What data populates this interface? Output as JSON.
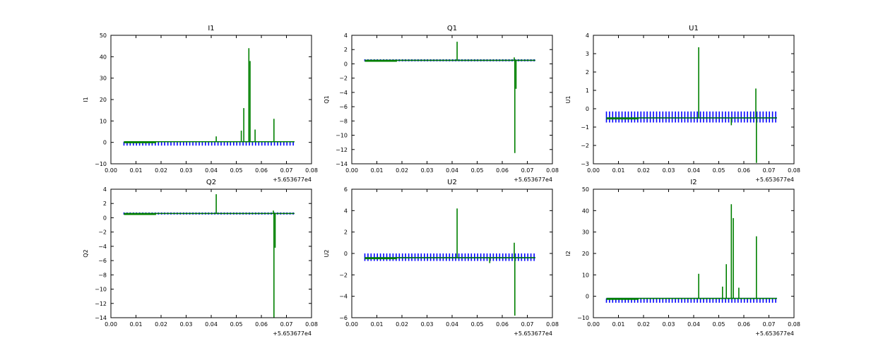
{
  "x_offset_label": "+5.653677e4",
  "colors": {
    "blue": "#0000ff",
    "green": "#008000",
    "frame": "#000000"
  },
  "chart_data": [
    {
      "type": "line",
      "title": "I1",
      "ylabel": "I1",
      "xlim": [
        0.0,
        0.08
      ],
      "ylim": [
        -10,
        50
      ],
      "xticks": [
        "0.00",
        "0.01",
        "0.02",
        "0.03",
        "0.04",
        "0.05",
        "0.06",
        "0.07",
        "0.08"
      ],
      "yticks": [
        "−10",
        "0",
        "10",
        "20",
        "30",
        "40",
        "50"
      ],
      "baseline": 0.3,
      "blue_tick_low": -1.5,
      "blue_tick_high": 0.3,
      "spikes": [
        [
          0.042,
          2.8
        ],
        [
          0.052,
          5.5
        ],
        [
          0.053,
          16
        ],
        [
          0.055,
          44
        ],
        [
          0.0555,
          38
        ],
        [
          0.0575,
          6
        ],
        [
          0.065,
          11
        ]
      ],
      "neg_spikes": []
    },
    {
      "type": "line",
      "title": "Q1",
      "ylabel": "Q1",
      "xlim": [
        0.0,
        0.08
      ],
      "ylim": [
        -14,
        4
      ],
      "xticks": [
        "0.00",
        "0.01",
        "0.02",
        "0.03",
        "0.04",
        "0.05",
        "0.06",
        "0.07",
        "0.08"
      ],
      "yticks": [
        "−14",
        "−12",
        "−10",
        "−8",
        "−6",
        "−4",
        "−2",
        "0",
        "2",
        "4"
      ],
      "baseline": 0.5,
      "blue_tick_low": 0.35,
      "blue_tick_high": 0.65,
      "spikes": [
        [
          0.042,
          3.1
        ],
        [
          0.0648,
          0.9
        ]
      ],
      "neg_spikes": [
        [
          0.065,
          -12.5
        ],
        [
          0.0655,
          -3.5
        ]
      ]
    },
    {
      "type": "line",
      "title": "U1",
      "ylabel": "U1",
      "xlim": [
        0.0,
        0.08
      ],
      "ylim": [
        -3,
        4
      ],
      "xticks": [
        "0.00",
        "0.01",
        "0.02",
        "0.03",
        "0.04",
        "0.05",
        "0.06",
        "0.07",
        "0.08"
      ],
      "yticks": [
        "−3",
        "−2",
        "−1",
        "0",
        "1",
        "2",
        "3",
        "4"
      ],
      "baseline": -0.5,
      "blue_tick_low": -0.75,
      "blue_tick_high": -0.15,
      "spikes": [
        [
          0.042,
          3.35
        ],
        [
          0.0648,
          1.1
        ]
      ],
      "neg_spikes": [
        [
          0.065,
          -2.95
        ],
        [
          0.055,
          -0.9
        ]
      ]
    },
    {
      "type": "line",
      "title": "Q2",
      "ylabel": "Q2",
      "xlim": [
        0.0,
        0.08
      ],
      "ylim": [
        -14,
        4
      ],
      "xticks": [
        "0.00",
        "0.01",
        "0.02",
        "0.03",
        "0.04",
        "0.05",
        "0.06",
        "0.07",
        "0.08"
      ],
      "yticks": [
        "−14",
        "−12",
        "−10",
        "−8",
        "−6",
        "−4",
        "−2",
        "0",
        "2",
        "4"
      ],
      "baseline": 0.6,
      "blue_tick_low": 0.45,
      "blue_tick_high": 0.75,
      "spikes": [
        [
          0.042,
          3.3
        ],
        [
          0.0648,
          1.0
        ]
      ],
      "neg_spikes": [
        [
          0.065,
          -14
        ],
        [
          0.0655,
          -4.2
        ]
      ]
    },
    {
      "type": "line",
      "title": "U2",
      "ylabel": "U2",
      "xlim": [
        0.0,
        0.08
      ],
      "ylim": [
        -6,
        6
      ],
      "xticks": [
        "0.00",
        "0.01",
        "0.02",
        "0.03",
        "0.04",
        "0.05",
        "0.06",
        "0.07",
        "0.08"
      ],
      "yticks": [
        "−6",
        "−4",
        "−2",
        "0",
        "2",
        "4",
        "6"
      ],
      "baseline": -0.4,
      "blue_tick_low": -0.7,
      "blue_tick_high": 0.0,
      "spikes": [
        [
          0.042,
          4.2
        ],
        [
          0.0648,
          1.0
        ]
      ],
      "neg_spikes": [
        [
          0.065,
          -5.8
        ],
        [
          0.055,
          -0.9
        ]
      ]
    },
    {
      "type": "line",
      "title": "I2",
      "ylabel": "I2",
      "xlim": [
        0.0,
        0.08
      ],
      "ylim": [
        -10,
        50
      ],
      "xticks": [
        "0.00",
        "0.01",
        "0.02",
        "0.03",
        "0.04",
        "0.05",
        "0.06",
        "0.07",
        "0.08"
      ],
      "yticks": [
        "−10",
        "0",
        "10",
        "20",
        "30",
        "40",
        "50"
      ],
      "baseline": -1.0,
      "blue_tick_low": -3.0,
      "blue_tick_high": -1.0,
      "spikes": [
        [
          0.042,
          10.5
        ],
        [
          0.0515,
          4.5
        ],
        [
          0.053,
          15
        ],
        [
          0.055,
          43
        ],
        [
          0.0558,
          36.5
        ],
        [
          0.058,
          4.0
        ],
        [
          0.065,
          28
        ]
      ],
      "neg_spikes": []
    }
  ]
}
